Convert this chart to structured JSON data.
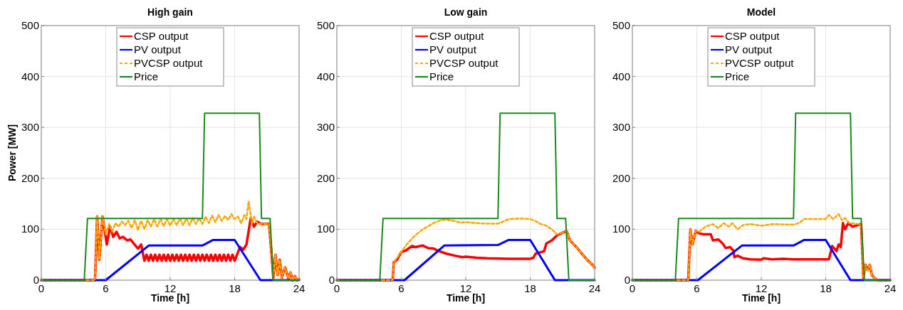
{
  "chart_data": [
    {
      "type": "line",
      "title": "High gain",
      "xlabel": "Time [h]",
      "ylabel": "Power [MW]",
      "xlim": [
        0,
        24
      ],
      "xticks": [
        0,
        6,
        12,
        18,
        24
      ],
      "ylim": [
        0,
        500
      ],
      "yticks": [
        0,
        100,
        200,
        300,
        400,
        500
      ],
      "grid": true,
      "legend": "top",
      "series": [
        {
          "name": "CSP output",
          "color": "#ff0000",
          "x": [
            0,
            5.0,
            5.2,
            5.4,
            5.7,
            6.1,
            6.4,
            6.7,
            7.0,
            7.3,
            7.6,
            8.0,
            8.3,
            8.6,
            9.0,
            9.3,
            9.6,
            9.8,
            10.0,
            10.2,
            10.4,
            10.6,
            10.8,
            11.0,
            11.2,
            11.4,
            11.6,
            11.8,
            12.0,
            12.2,
            12.4,
            12.6,
            12.8,
            13.0,
            13.2,
            13.4,
            13.6,
            13.8,
            14.0,
            14.2,
            14.4,
            14.6,
            14.8,
            15.0,
            15.2,
            15.4,
            15.6,
            15.8,
            16.0,
            16.2,
            16.4,
            16.6,
            16.8,
            17.0,
            17.2,
            17.4,
            17.6,
            17.8,
            18.0,
            18.5,
            18.8,
            19.1,
            19.5,
            19.8,
            20.1,
            20.5,
            21.2,
            21.4,
            21.6,
            21.8,
            22.0,
            22.2,
            22.4,
            22.7,
            23.0,
            23.2,
            23.4,
            23.6,
            23.8,
            24
          ],
          "values": [
            0,
            0,
            125,
            40,
            125,
            70,
            105,
            85,
            95,
            82,
            85,
            78,
            80,
            72,
            62,
            70,
            38,
            50,
            38,
            50,
            38,
            50,
            38,
            50,
            38,
            50,
            38,
            50,
            38,
            50,
            38,
            50,
            38,
            50,
            38,
            50,
            38,
            50,
            38,
            50,
            38,
            50,
            38,
            50,
            38,
            50,
            38,
            50,
            38,
            50,
            38,
            50,
            38,
            50,
            38,
            50,
            38,
            50,
            38,
            65,
            60,
            70,
            122,
            105,
            115,
            110,
            111,
            60,
            5,
            50,
            10,
            40,
            5,
            25,
            3,
            15,
            0,
            8,
            0,
            2
          ]
        },
        {
          "name": "PV output",
          "color": "#0000ff",
          "x": [
            0,
            6.0,
            10.0,
            15.0,
            16.0,
            18.0,
            20.4,
            24
          ],
          "values": [
            0,
            0,
            68,
            68,
            79,
            79,
            0,
            0
          ]
        },
        {
          "name": "PVCSP output",
          "color": "#ffa500",
          "line_style": "dashed",
          "x": [
            0,
            5.0,
            5.2,
            5.4,
            5.7,
            6.0,
            6.3,
            6.6,
            6.9,
            7.2,
            7.5,
            7.8,
            8.1,
            8.4,
            8.7,
            9.0,
            9.3,
            9.6,
            9.9,
            10.2,
            10.5,
            10.8,
            11.1,
            11.4,
            11.7,
            12.0,
            12.3,
            12.6,
            12.9,
            13.2,
            13.5,
            13.8,
            14.1,
            14.4,
            14.7,
            15.0,
            15.3,
            15.6,
            15.9,
            16.2,
            16.5,
            16.8,
            17.1,
            17.4,
            17.7,
            18.0,
            18.3,
            18.6,
            18.9,
            19.1,
            19.3,
            19.6,
            19.8,
            20.1,
            20.5,
            21.2,
            21.4,
            21.6,
            21.8,
            22.0,
            22.2,
            22.4,
            22.7,
            23.0,
            23.2,
            23.4,
            23.6,
            23.8,
            24
          ],
          "values": [
            0,
            0,
            128,
            40,
            125,
            90,
            110,
            95,
            112,
            105,
            115,
            108,
            117,
            102,
            118,
            98,
            117,
            100,
            118,
            105,
            120,
            105,
            120,
            106,
            120,
            107,
            120,
            108,
            121,
            108,
            121,
            108,
            122,
            110,
            122,
            110,
            125,
            112,
            127,
            114,
            128,
            116,
            126,
            118,
            130,
            120,
            125,
            112,
            128,
            120,
            155,
            110,
            125,
            112,
            110,
            111,
            60,
            5,
            50,
            10,
            40,
            5,
            25,
            3,
            15,
            0,
            8,
            0,
            2
          ]
        },
        {
          "name": "Price",
          "color": "#1a8a1a",
          "x": [
            0,
            4.0,
            4.3,
            15.0,
            15.2,
            20.3,
            20.5,
            21.3,
            21.6,
            24
          ],
          "values": [
            0,
            0,
            121,
            121,
            328,
            328,
            121,
            121,
            0,
            0
          ]
        }
      ]
    },
    {
      "type": "line",
      "title": "Low gain",
      "xlabel": "Time [h]",
      "xlim": [
        0,
        24
      ],
      "xticks": [
        0,
        6,
        12,
        18,
        24
      ],
      "ylim": [
        0,
        500
      ],
      "yticks": [
        0,
        100,
        200,
        300,
        400,
        500
      ],
      "grid": true,
      "legend": "top",
      "series": [
        {
          "name": "CSP output",
          "color": "#ff0000",
          "x": [
            0,
            5.2,
            5.3,
            5.6,
            6.0,
            6.4,
            7.0,
            7.3,
            8.0,
            8.5,
            9.0,
            9.5,
            10.2,
            11.0,
            11.7,
            12.0,
            13.0,
            14.0,
            16.0,
            18.0,
            18.3,
            18.5,
            19.0,
            19.3,
            19.5,
            20.0,
            20.5,
            21.0,
            21.4,
            21.7,
            22.3,
            22.8,
            23.3,
            23.8,
            24
          ],
          "values": [
            0,
            0,
            35,
            40,
            55,
            58,
            67,
            65,
            68,
            63,
            62,
            57,
            52,
            48,
            45,
            46,
            44,
            43,
            42,
            42,
            44,
            52,
            55,
            57,
            72,
            78,
            88,
            93,
            96,
            78,
            65,
            52,
            40,
            30,
            25
          ]
        },
        {
          "name": "PV output",
          "color": "#0000ff",
          "x": [
            0,
            6.3,
            10.0,
            15.0,
            16.0,
            18.0,
            20.3,
            24
          ],
          "values": [
            0,
            0,
            68,
            69,
            79,
            79,
            0,
            0
          ]
        },
        {
          "name": "PVCSP output",
          "color": "#ffa500",
          "line_style": "dashed",
          "x": [
            0,
            5.2,
            5.3,
            6.0,
            6.5,
            7.3,
            8.0,
            8.5,
            9.0,
            9.7,
            10.2,
            11.0,
            11.5,
            12.0,
            13.0,
            14.0,
            15.0,
            15.5,
            16.0,
            17.0,
            18.0,
            18.5,
            19.0,
            19.5,
            20.0,
            20.5,
            21.0,
            21.4,
            21.7,
            22.3,
            22.8,
            23.3,
            23.8,
            24
          ],
          "values": [
            0,
            0,
            35,
            55,
            70,
            88,
            100,
            106,
            112,
            118,
            119,
            116,
            113,
            114,
            112,
            111,
            111,
            115,
            120,
            121,
            120,
            116,
            110,
            107,
            100,
            90,
            93,
            96,
            78,
            65,
            52,
            40,
            30,
            25
          ]
        },
        {
          "name": "Price",
          "color": "#1a8a1a",
          "x": [
            0,
            4.0,
            4.3,
            15.0,
            15.2,
            20.3,
            20.5,
            21.3,
            21.6,
            24
          ],
          "values": [
            0,
            0,
            121,
            121,
            328,
            328,
            121,
            121,
            0,
            0
          ]
        }
      ]
    },
    {
      "type": "line",
      "title": "Model",
      "xlabel": "Time [h]",
      "xlim": [
        0,
        24
      ],
      "xticks": [
        0,
        6,
        12,
        18,
        24
      ],
      "ylim": [
        0,
        500
      ],
      "yticks": [
        0,
        100,
        200,
        300,
        400,
        500
      ],
      "grid": true,
      "legend": "top",
      "series": [
        {
          "name": "CSP output",
          "color": "#ff0000",
          "x": [
            0,
            5.2,
            5.4,
            5.6,
            5.9,
            6.2,
            6.6,
            7.3,
            7.5,
            8.0,
            8.4,
            8.7,
            9.1,
            9.4,
            9.5,
            9.8,
            10.3,
            11.0,
            12.0,
            12.2,
            13.0,
            14.0,
            15.0,
            18.3,
            18.6,
            19.0,
            19.2,
            19.4,
            19.6,
            19.8,
            20.1,
            20.5,
            21.2,
            21.3,
            21.5,
            21.7,
            21.9,
            22.1,
            22.3,
            22.5,
            22.8,
            24
          ],
          "values": [
            0,
            0,
            100,
            70,
            97,
            92,
            90,
            90,
            78,
            80,
            72,
            63,
            65,
            58,
            45,
            48,
            43,
            41,
            40,
            43,
            41,
            42,
            41,
            41,
            67,
            57,
            70,
            65,
            112,
            100,
            112,
            105,
            110,
            110,
            5,
            30,
            20,
            30,
            10,
            5,
            0,
            0
          ]
        },
        {
          "name": "PV output",
          "color": "#0000ff",
          "x": [
            0,
            6.1,
            10.2,
            15.0,
            16.0,
            18.0,
            20.3,
            24
          ],
          "values": [
            0,
            0,
            68,
            68,
            79,
            79,
            0,
            0
          ]
        },
        {
          "name": "PVCSP output",
          "color": "#ffa500",
          "line_style": "dashed",
          "x": [
            0,
            5.2,
            5.4,
            5.6,
            5.9,
            6.2,
            6.8,
            7.5,
            8.0,
            8.5,
            9.0,
            9.3,
            9.8,
            10.3,
            11.0,
            12.0,
            13.0,
            15.0,
            15.5,
            16.0,
            18.0,
            18.3,
            18.7,
            19.2,
            19.5,
            19.8,
            20.2,
            21.2,
            21.3,
            21.5,
            21.7,
            21.9,
            22.1,
            22.3,
            22.5,
            22.8,
            24
          ],
          "values": [
            0,
            0,
            100,
            70,
            97,
            95,
            105,
            110,
            102,
            112,
            105,
            112,
            100,
            108,
            110,
            107,
            110,
            109,
            112,
            120,
            120,
            128,
            120,
            130,
            118,
            122,
            112,
            110,
            110,
            5,
            30,
            20,
            30,
            10,
            5,
            0,
            0
          ]
        },
        {
          "name": "Price",
          "color": "#1a8a1a",
          "x": [
            0,
            4.0,
            4.3,
            15.0,
            15.2,
            20.3,
            20.5,
            21.3,
            21.6,
            24
          ],
          "values": [
            0,
            0,
            121,
            121,
            328,
            328,
            121,
            121,
            0,
            0
          ]
        }
      ]
    }
  ]
}
